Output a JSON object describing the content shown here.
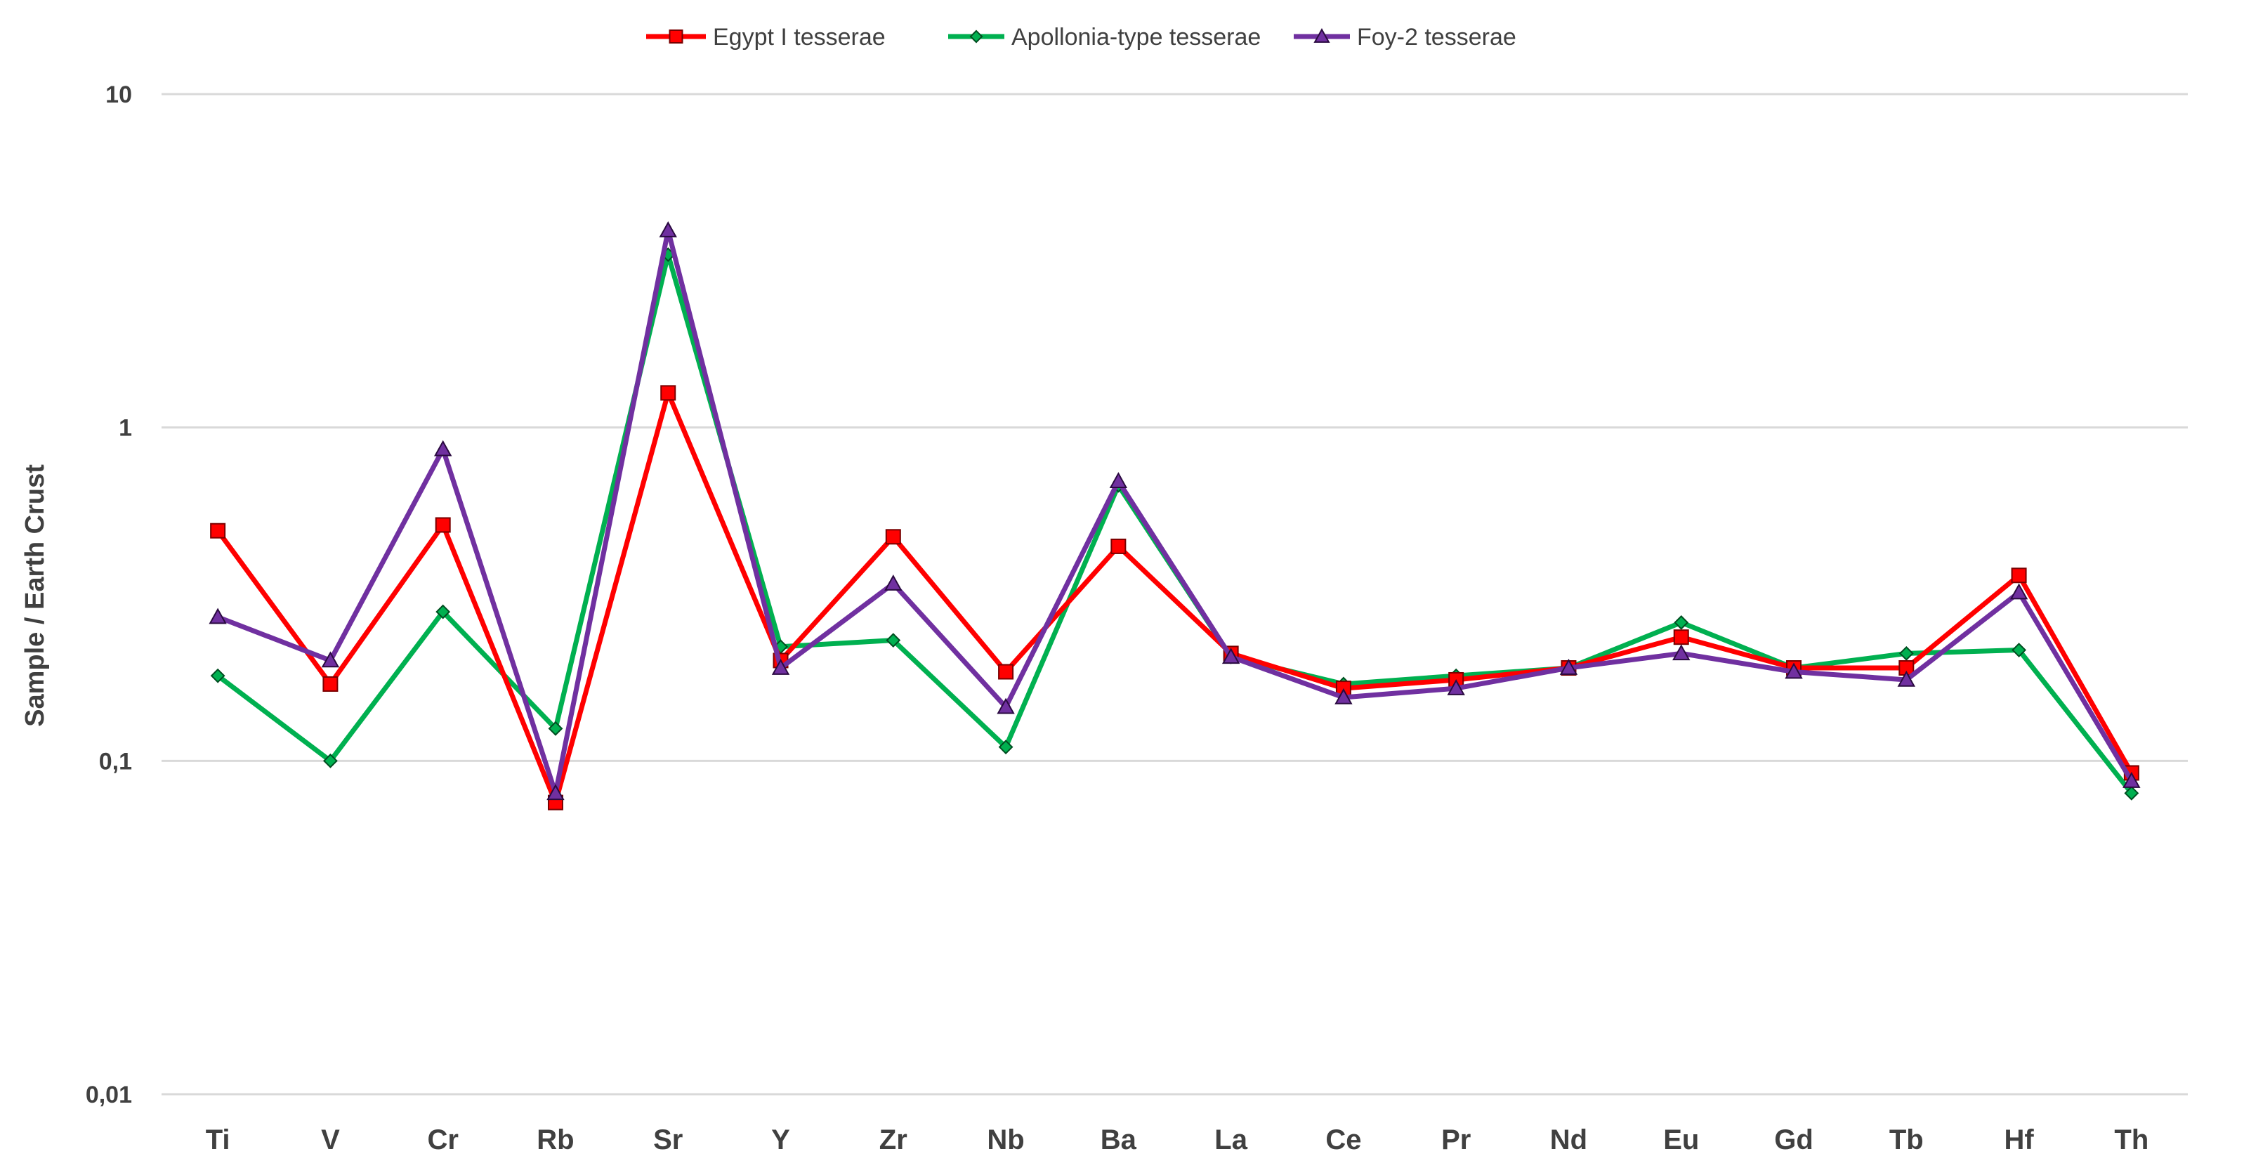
{
  "chart_data": {
    "type": "line",
    "title": "",
    "xlabel": "",
    "ylabel": "Sample / Earth Crust",
    "yscale": "log",
    "ylim": [
      0.01,
      10
    ],
    "yticks": [
      10,
      1,
      0.1,
      0.01
    ],
    "ytick_labels": [
      "10",
      "1",
      "0,1",
      "0,01"
    ],
    "grid": "horizontal",
    "legend": "top-center",
    "categories": [
      "Ti",
      "V",
      "Cr",
      "Rb",
      "Sr",
      "Y",
      "Zr",
      "Nb",
      "Ba",
      "La",
      "Ce",
      "Pr",
      "Nd",
      "Eu",
      "Gd",
      "Tb",
      "Hf",
      "Th"
    ],
    "series": [
      {
        "name": "Egypt I tesserae",
        "color": "#ff0000",
        "marker": "square",
        "values": [
          0.49,
          0.17,
          0.51,
          0.075,
          1.27,
          0.2,
          0.47,
          0.185,
          0.44,
          0.21,
          0.165,
          0.175,
          0.19,
          0.235,
          0.19,
          0.19,
          0.36,
          0.092
        ]
      },
      {
        "name": "Apollonia-type tesserae",
        "color": "#00b050",
        "marker": "diamond",
        "values": [
          0.18,
          0.1,
          0.28,
          0.125,
          3.3,
          0.22,
          0.23,
          0.11,
          0.67,
          0.205,
          0.17,
          0.18,
          0.19,
          0.26,
          0.19,
          0.21,
          0.215,
          0.08
        ]
      },
      {
        "name": "Foy-2 tesserae",
        "color": "#7030a0",
        "marker": "triangle",
        "values": [
          0.27,
          0.2,
          0.86,
          0.08,
          3.9,
          0.19,
          0.34,
          0.145,
          0.69,
          0.205,
          0.155,
          0.165,
          0.19,
          0.21,
          0.185,
          0.175,
          0.32,
          0.087
        ]
      }
    ]
  }
}
